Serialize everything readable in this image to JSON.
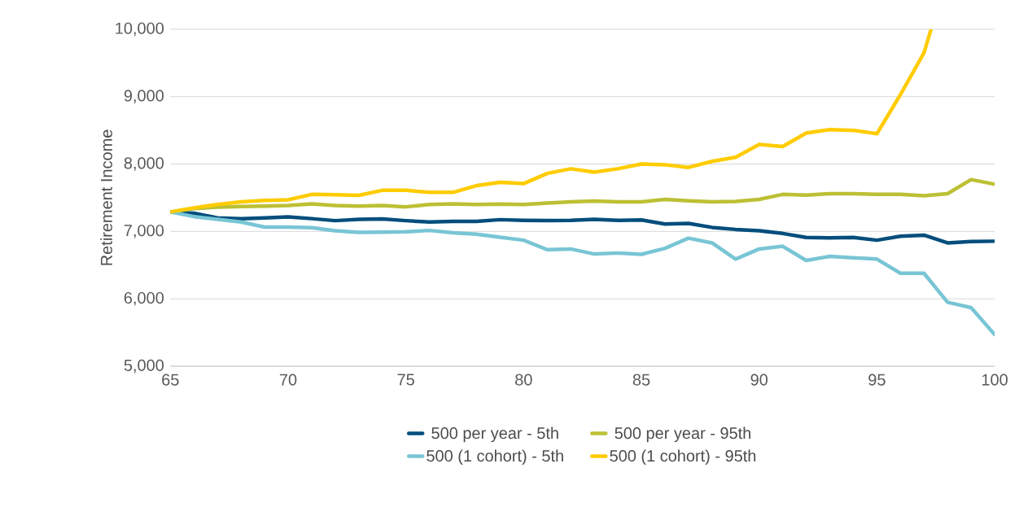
{
  "chart_data": {
    "type": "line",
    "ylabel": "Retirement Income",
    "x": [
      65,
      66,
      67,
      68,
      69,
      70,
      71,
      72,
      73,
      74,
      75,
      76,
      77,
      78,
      79,
      80,
      81,
      82,
      83,
      84,
      85,
      86,
      87,
      88,
      89,
      90,
      91,
      92,
      93,
      94,
      95,
      96,
      97,
      98,
      99,
      100
    ],
    "xlim": [
      65,
      100
    ],
    "xticks": [
      65,
      70,
      75,
      80,
      85,
      90,
      95,
      100
    ],
    "ylim": [
      5000,
      10000
    ],
    "yticks": [
      {
        "value": 5000,
        "label": "5,000"
      },
      {
        "value": 6000,
        "label": "6,000"
      },
      {
        "value": 7000,
        "label": "7,000"
      },
      {
        "value": 8000,
        "label": "8,000"
      },
      {
        "value": 9000,
        "label": "9,000"
      },
      {
        "value": 10000,
        "label": "10,000"
      }
    ],
    "grid": "y",
    "legend": "bottom",
    "series": [
      {
        "name": "500 per year - 5th",
        "color": "#044e7c",
        "values": [
          7290,
          7270,
          7200,
          7190,
          7200,
          7215,
          7190,
          7160,
          7180,
          7185,
          7160,
          7140,
          7150,
          7150,
          7175,
          7165,
          7160,
          7165,
          7180,
          7165,
          7170,
          7110,
          7120,
          7060,
          7030,
          7010,
          6970,
          6910,
          6905,
          6910,
          6870,
          6930,
          6945,
          6830,
          6850,
          6855
        ]
      },
      {
        "name": "500 per year - 95th",
        "color": "#bcc034",
        "values": [
          7290,
          7340,
          7360,
          7370,
          7375,
          7385,
          7410,
          7385,
          7375,
          7385,
          7365,
          7400,
          7410,
          7400,
          7405,
          7400,
          7420,
          7440,
          7450,
          7440,
          7440,
          7475,
          7455,
          7440,
          7445,
          7475,
          7550,
          7540,
          7560,
          7560,
          7550,
          7550,
          7530,
          7560,
          7770,
          7700
        ]
      },
      {
        "name": "500 (1 cohort) - 5th",
        "color": "#78c5d5",
        "values": [
          7290,
          7220,
          7180,
          7140,
          7065,
          7065,
          7055,
          7010,
          6985,
          6990,
          6995,
          7015,
          6980,
          6960,
          6915,
          6870,
          6730,
          6740,
          6665,
          6680,
          6660,
          6750,
          6900,
          6830,
          6590,
          6740,
          6780,
          6570,
          6630,
          6610,
          6590,
          6380,
          6380,
          5950,
          5870,
          5470
        ]
      },
      {
        "name": "500 (1 cohort) - 95th",
        "color": "#ffcc00",
        "x": [
          65,
          66,
          67,
          68,
          69,
          70,
          71,
          72,
          73,
          74,
          75,
          76,
          77,
          78,
          79,
          80,
          81,
          82,
          83,
          84,
          85,
          86,
          87,
          88,
          89,
          90,
          91,
          92,
          93,
          94,
          95,
          96,
          97,
          97.3
        ],
        "values": [
          7290,
          7350,
          7400,
          7440,
          7460,
          7470,
          7550,
          7545,
          7535,
          7610,
          7610,
          7580,
          7580,
          7680,
          7730,
          7710,
          7860,
          7930,
          7880,
          7930,
          8000,
          7990,
          7950,
          8040,
          8100,
          8290,
          8260,
          8460,
          8510,
          8500,
          8450,
          9030,
          9650,
          10000
        ]
      }
    ]
  }
}
